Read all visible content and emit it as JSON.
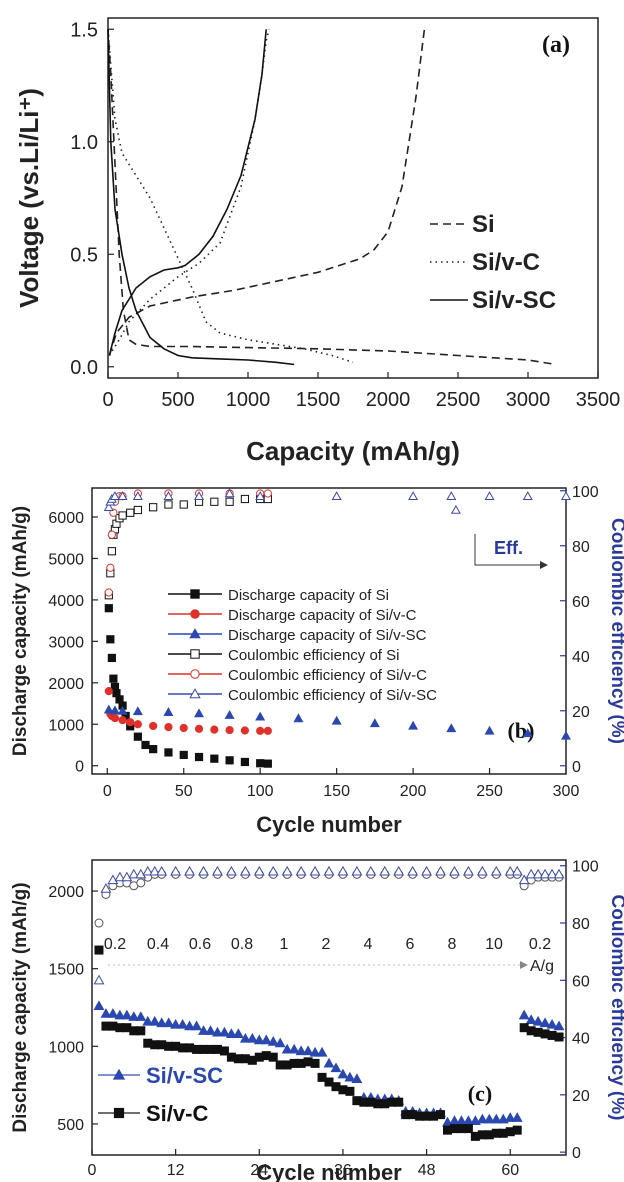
{
  "chart_data": [
    {
      "panel": "(a)",
      "type": "line",
      "xlabel": "Capacity (mAh/g)",
      "ylabel": "Voltage (vs.Li/Li⁺)",
      "xlim": [
        0,
        3500
      ],
      "ylim": [
        -0.05,
        1.55
      ],
      "xticks": [
        0,
        500,
        1000,
        1500,
        2000,
        2500,
        3000,
        3500
      ],
      "yticks": [
        0.0,
        0.5,
        1.0,
        1.5
      ],
      "ytick_labels": [
        "0.0",
        "0.5",
        "1.0",
        "1.5"
      ],
      "legend_position": "center-right",
      "series": [
        {
          "name": "Si",
          "style": "dashed",
          "color": "#222222",
          "segments": [
            {
              "x": [
                0,
                20,
                50,
                80,
                110,
                150,
                200,
                300,
                600,
                1000,
                1500,
                2000,
                2500,
                3000,
                3200
              ],
              "y": [
                1.5,
                1.3,
                0.9,
                0.5,
                0.25,
                0.12,
                0.1,
                0.09,
                0.09,
                0.085,
                0.08,
                0.07,
                0.05,
                0.03,
                0.01
              ]
            },
            {
              "x": [
                10,
                60,
                150,
                300,
                600,
                900,
                1200,
                1500,
                1800,
                1900,
                2000,
                2100,
                2150,
                2200,
                2240,
                2260
              ],
              "y": [
                0.05,
                0.15,
                0.22,
                0.27,
                0.31,
                0.34,
                0.38,
                0.42,
                0.48,
                0.52,
                0.6,
                0.8,
                1.0,
                1.2,
                1.4,
                1.5
              ]
            }
          ]
        },
        {
          "name": "Si/v-C",
          "style": "dotted",
          "color": "#222222",
          "segments": [
            {
              "x": [
                0,
                50,
                100,
                200,
                300,
                450,
                600,
                700,
                800,
                1000,
                1200,
                1400,
                1600,
                1750
              ],
              "y": [
                1.5,
                1.1,
                0.95,
                0.85,
                0.75,
                0.55,
                0.35,
                0.2,
                0.15,
                0.12,
                0.1,
                0.08,
                0.05,
                0.02
              ]
            },
            {
              "x": [
                10,
                80,
                150,
                300,
                500,
                650,
                800,
                950,
                1050,
                1100,
                1130,
                1150
              ],
              "y": [
                0.05,
                0.12,
                0.2,
                0.3,
                0.4,
                0.46,
                0.55,
                0.8,
                1.1,
                1.3,
                1.45,
                1.5
              ]
            }
          ]
        },
        {
          "name": "Si/v-SC",
          "style": "solid",
          "color": "#111111",
          "segments": [
            {
              "x": [
                0,
                20,
                50,
                100,
                150,
                200,
                300,
                400,
                500,
                600,
                800,
                1000,
                1200,
                1330
              ],
              "y": [
                1.5,
                1.0,
                0.7,
                0.5,
                0.35,
                0.25,
                0.13,
                0.08,
                0.05,
                0.04,
                0.035,
                0.03,
                0.02,
                0.01
              ]
            },
            {
              "x": [
                10,
                50,
                100,
                200,
                300,
                400,
                500,
                550,
                650,
                750,
                850,
                950,
                1050,
                1100,
                1130
              ],
              "y": [
                0.05,
                0.15,
                0.25,
                0.35,
                0.4,
                0.43,
                0.44,
                0.45,
                0.5,
                0.58,
                0.7,
                0.85,
                1.1,
                1.3,
                1.5
              ]
            }
          ]
        }
      ]
    },
    {
      "panel": "(b)",
      "type": "scatter",
      "xlabel": "Cycle number",
      "ylabel": "Discharge capacity (mAh/g)",
      "y2label": "Coulombic efficiency (%)",
      "xlim": [
        -10,
        300
      ],
      "ylim": [
        -200,
        6700
      ],
      "y2lim": [
        -3,
        101
      ],
      "xticks": [
        0,
        50,
        100,
        150,
        200,
        250,
        300
      ],
      "yticks": [
        0,
        1000,
        2000,
        3000,
        4000,
        5000,
        6000
      ],
      "y2ticks": [
        0,
        20,
        40,
        60,
        80,
        100
      ],
      "annotation": "Eff.",
      "legend_position": "center",
      "series": [
        {
          "name": "Discharge capacity of Si",
          "marker": "filled-square",
          "color": "#111111",
          "axis": "left",
          "x": [
            1,
            2,
            3,
            4,
            5,
            6,
            8,
            10,
            12,
            15,
            20,
            25,
            30,
            40,
            50,
            60,
            70,
            80,
            90,
            100,
            105
          ],
          "y": [
            3800,
            3050,
            2600,
            2100,
            1900,
            1750,
            1600,
            1450,
            1200,
            950,
            700,
            500,
            400,
            320,
            260,
            210,
            170,
            130,
            90,
            60,
            50
          ]
        },
        {
          "name": "Discharge capacity of Si/v-C",
          "marker": "filled-circle",
          "color": "#e0302a",
          "axis": "left",
          "x": [
            1,
            2,
            3,
            5,
            10,
            15,
            20,
            30,
            40,
            50,
            60,
            70,
            80,
            90,
            100,
            105
          ],
          "y": [
            1800,
            1250,
            1200,
            1150,
            1100,
            1050,
            1000,
            960,
            930,
            910,
            890,
            870,
            860,
            850,
            840,
            840
          ]
        },
        {
          "name": "Discharge capacity of Si/v-SC",
          "marker": "filled-triangle",
          "color": "#2a48b0",
          "axis": "left",
          "x": [
            1,
            5,
            10,
            20,
            40,
            60,
            80,
            100,
            125,
            150,
            175,
            200,
            225,
            250,
            275,
            300
          ],
          "y": [
            1350,
            1330,
            1320,
            1310,
            1290,
            1260,
            1220,
            1180,
            1140,
            1080,
            1020,
            960,
            900,
            840,
            780,
            720
          ]
        },
        {
          "name": "Coulombic efficiency of Si",
          "marker": "open-square",
          "color": "#111111",
          "axis": "right",
          "x": [
            1,
            2,
            3,
            4,
            5,
            6,
            8,
            10,
            15,
            20,
            30,
            40,
            50,
            60,
            70,
            80,
            90,
            100,
            105
          ],
          "y": [
            62,
            70,
            78,
            84,
            86,
            88,
            90,
            91,
            92,
            93,
            94,
            95,
            95,
            96,
            96,
            96,
            97,
            97,
            97
          ]
        },
        {
          "name": "Coulombic efficiency of Si/v-C",
          "marker": "open-circle",
          "color": "#e0302a",
          "axis": "right",
          "x": [
            1,
            2,
            3,
            4,
            5,
            8,
            10,
            20,
            40,
            60,
            80,
            100,
            105
          ],
          "y": [
            63,
            72,
            84,
            92,
            96,
            98,
            98,
            99,
            99,
            99,
            99,
            99,
            99
          ]
        },
        {
          "name": "Coulombic efficiency of Si/v-SC",
          "marker": "open-triangle",
          "color": "#3a4aa8",
          "axis": "right",
          "x": [
            1,
            2,
            3,
            5,
            10,
            20,
            40,
            60,
            80,
            100,
            150,
            200,
            225,
            228,
            250,
            275,
            300
          ],
          "y": [
            94,
            96,
            97,
            98,
            98,
            98,
            98,
            98,
            99,
            98,
            98,
            98,
            98,
            93,
            98,
            98,
            98
          ]
        }
      ]
    },
    {
      "panel": "(c)",
      "type": "scatter",
      "xlabel": "Cycle number",
      "ylabel": "Discharge capacity (mAh/g)",
      "y2label": "Coulombic efficiency (%)",
      "xlim": [
        0,
        68
      ],
      "ylim": [
        300,
        2200
      ],
      "y2lim": [
        -1,
        102
      ],
      "xticks": [
        0,
        12,
        24,
        36,
        48,
        60
      ],
      "yticks": [
        500,
        1000,
        1500,
        2000
      ],
      "y2ticks": [
        0,
        20,
        40,
        60,
        80,
        100
      ],
      "rate_labels": [
        "0.2",
        "0.4",
        "0.6",
        "0.8",
        "1",
        "2",
        "4",
        "6",
        "8",
        "10",
        "0.2"
      ],
      "rate_unit": "A/g",
      "legend_position": "bottom-left",
      "series": [
        {
          "name": "Si/v-SC",
          "marker": "filled-triangle",
          "color": "#2a48b0",
          "axis": "left",
          "x": [
            1,
            2,
            3,
            4,
            5,
            6,
            7,
            8,
            9,
            10,
            11,
            12,
            13,
            14,
            15,
            16,
            17,
            18,
            19,
            20,
            21,
            22,
            23,
            24,
            25,
            26,
            27,
            28,
            29,
            30,
            31,
            32,
            33,
            34,
            35,
            36,
            37,
            38,
            39,
            40,
            41,
            42,
            43,
            44,
            45,
            46,
            47,
            48,
            49,
            50,
            51,
            52,
            53,
            54,
            55,
            56,
            57,
            58,
            59,
            60,
            61,
            62,
            63,
            64,
            65,
            66,
            67
          ],
          "y": [
            1260,
            1210,
            1210,
            1200,
            1200,
            1190,
            1190,
            1160,
            1160,
            1150,
            1150,
            1140,
            1140,
            1130,
            1130,
            1100,
            1100,
            1090,
            1090,
            1080,
            1080,
            1050,
            1050,
            1040,
            1040,
            1030,
            1020,
            980,
            980,
            970,
            970,
            960,
            960,
            890,
            860,
            820,
            800,
            790,
            670,
            670,
            660,
            660,
            660,
            650,
            580,
            580,
            570,
            570,
            570,
            570,
            510,
            520,
            520,
            520,
            520,
            530,
            530,
            530,
            530,
            540,
            540,
            1200,
            1170,
            1160,
            1150,
            1140,
            1130
          ]
        },
        {
          "name": "Si/v-C",
          "marker": "filled-square",
          "color": "#111111",
          "axis": "left",
          "x": [
            1,
            2,
            3,
            4,
            5,
            6,
            7,
            8,
            9,
            10,
            11,
            12,
            13,
            14,
            15,
            16,
            17,
            18,
            19,
            20,
            21,
            22,
            23,
            24,
            25,
            26,
            27,
            28,
            29,
            30,
            31,
            32,
            33,
            34,
            35,
            36,
            37,
            38,
            39,
            40,
            41,
            42,
            43,
            44,
            45,
            46,
            47,
            48,
            49,
            50,
            51,
            52,
            53,
            54,
            55,
            56,
            57,
            58,
            59,
            60,
            61,
            62,
            63,
            64,
            65,
            66,
            67
          ],
          "y": [
            1620,
            1130,
            1130,
            1120,
            1120,
            1100,
            1100,
            1020,
            1010,
            1010,
            1000,
            1000,
            990,
            990,
            980,
            980,
            980,
            980,
            970,
            930,
            920,
            920,
            910,
            930,
            940,
            930,
            880,
            880,
            890,
            890,
            900,
            890,
            800,
            770,
            740,
            720,
            710,
            650,
            640,
            640,
            630,
            630,
            640,
            640,
            560,
            560,
            550,
            550,
            550,
            560,
            460,
            470,
            470,
            470,
            420,
            430,
            430,
            440,
            440,
            450,
            460,
            1120,
            1100,
            1090,
            1080,
            1070,
            1060
          ]
        },
        {
          "name": "",
          "marker": "open-circle",
          "color": "#555555",
          "axis": "right",
          "x": [
            1,
            2,
            3,
            4,
            5,
            6,
            7,
            8,
            9,
            10,
            12,
            14,
            16,
            18,
            20,
            22,
            24,
            26,
            28,
            30,
            32,
            34,
            36,
            38,
            40,
            42,
            44,
            46,
            48,
            50,
            52,
            54,
            56,
            58,
            60,
            61,
            62,
            63,
            64,
            65,
            66,
            67
          ],
          "y": [
            80,
            90,
            93,
            94,
            94,
            93,
            94,
            96,
            97,
            97,
            97,
            97,
            97,
            97,
            97,
            97,
            97,
            97,
            97,
            97,
            97,
            97,
            97,
            97,
            97,
            97,
            97,
            97,
            97,
            97,
            97,
            97,
            97,
            97,
            97,
            97,
            93,
            95,
            96,
            96,
            96,
            96
          ]
        },
        {
          "name": "",
          "marker": "open-triangle",
          "color": "#3a4aa8",
          "axis": "right",
          "x": [
            1,
            2,
            3,
            4,
            5,
            6,
            7,
            8,
            9,
            10,
            12,
            14,
            16,
            18,
            20,
            22,
            24,
            26,
            28,
            30,
            32,
            34,
            36,
            38,
            40,
            42,
            44,
            46,
            48,
            50,
            52,
            54,
            56,
            58,
            60,
            61,
            62,
            63,
            64,
            65,
            66,
            67
          ],
          "y": [
            60,
            92,
            95,
            96,
            96,
            97,
            97,
            98,
            98,
            98,
            98,
            98,
            98,
            98,
            98,
            98,
            98,
            98,
            98,
            98,
            98,
            98,
            98,
            98,
            98,
            98,
            98,
            98,
            98,
            98,
            98,
            98,
            98,
            98,
            98,
            98,
            95,
            97,
            97,
            97,
            97,
            97
          ]
        }
      ]
    }
  ]
}
